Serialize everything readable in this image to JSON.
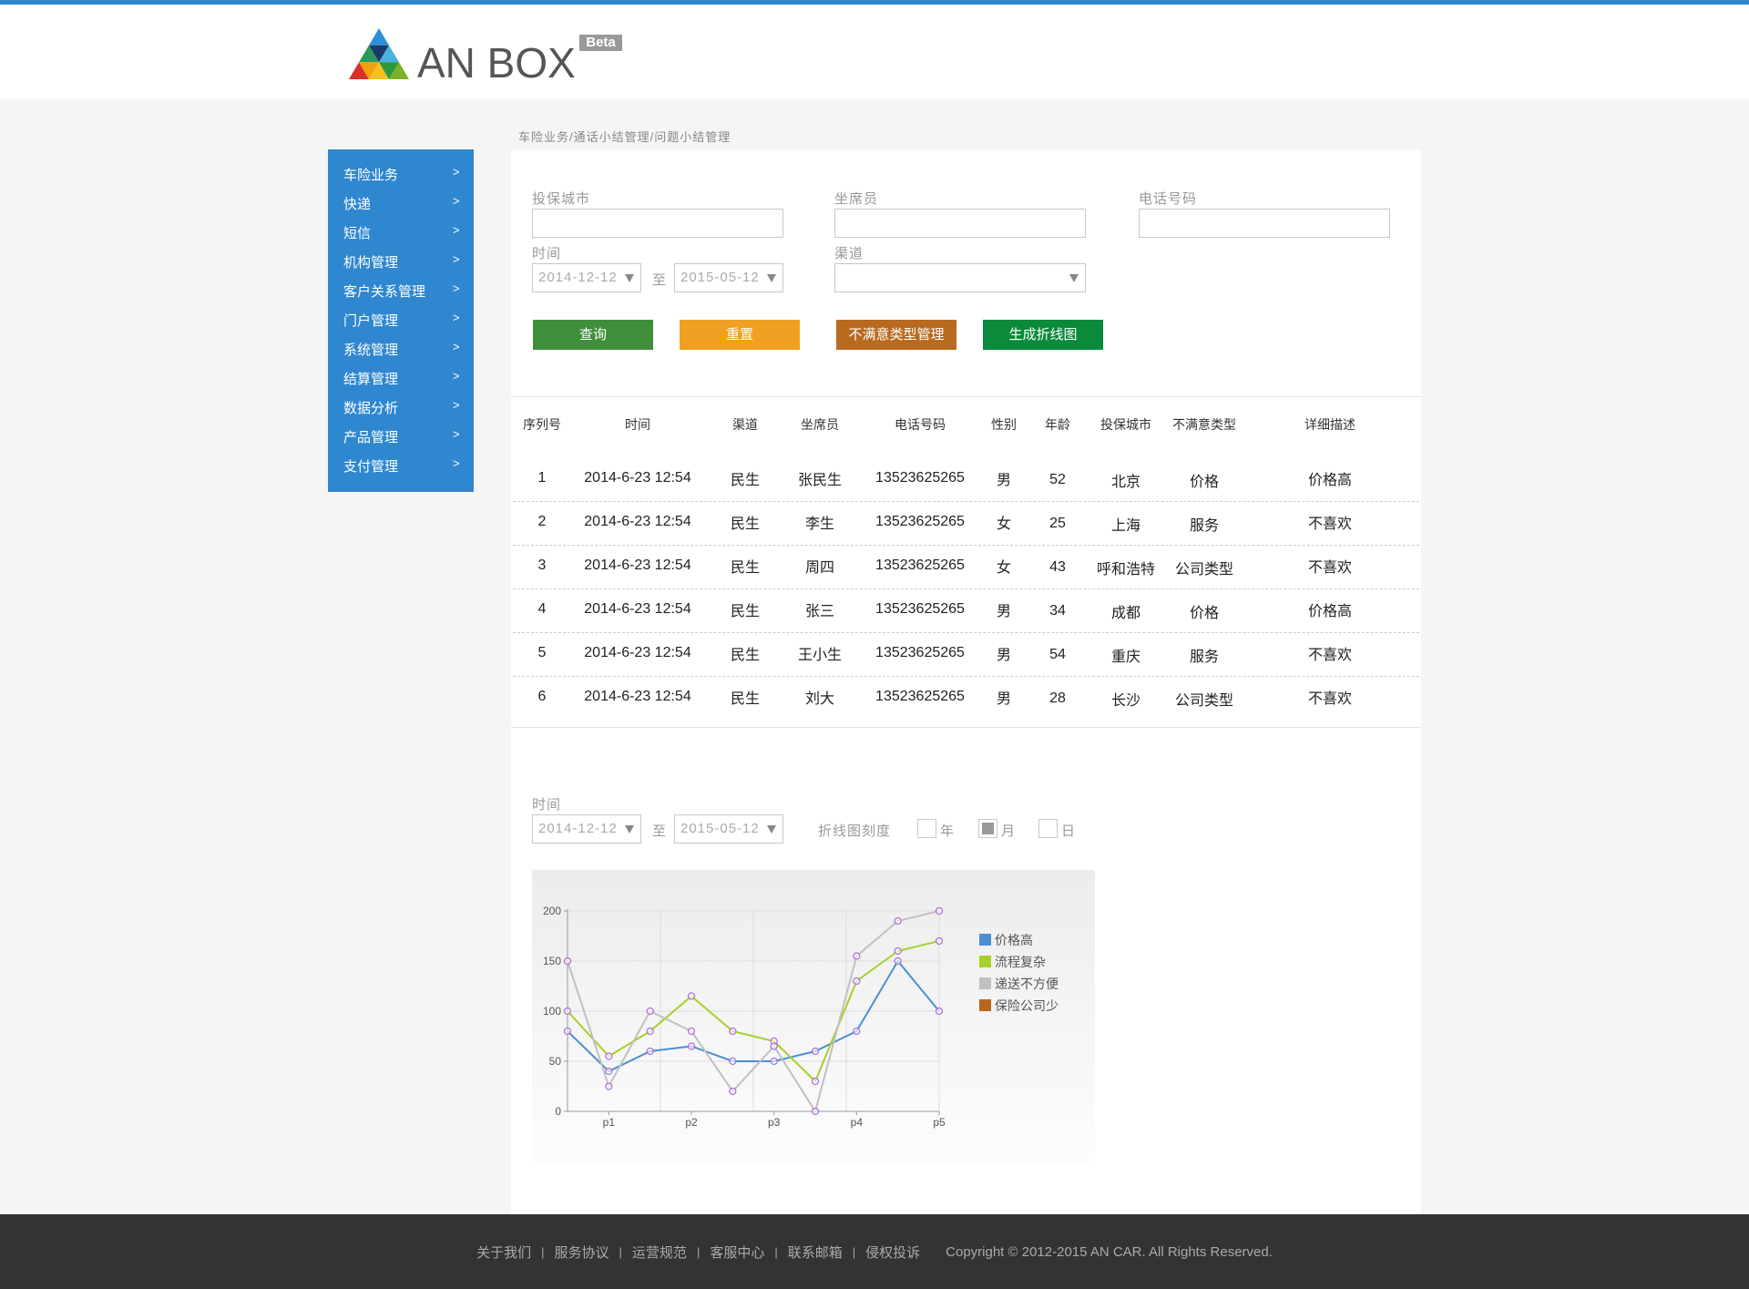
{
  "header": {
    "logo": "AN BOX",
    "badge": "Beta"
  },
  "breadcrumb": "车险业务/通话小结管理/问题小结管理",
  "sidebar": {
    "items": [
      "车险业务",
      "快递",
      "短信",
      "机构管理",
      "客户关系管理",
      "门户管理",
      "系统管理",
      "结算管理",
      "数据分析",
      "产品管理",
      "支付管理"
    ],
    "arrow": ">"
  },
  "form": {
    "city_label": "投保城市",
    "agent_label": "坐席员",
    "phone_label": "电话号码",
    "time_label": "时间",
    "date_from": "2014-12-12",
    "to": "至",
    "date_to": "2015-05-12",
    "channel_label": "渠道"
  },
  "buttons": [
    "查询",
    "重置",
    "不满意类型管理",
    "生成折线图"
  ],
  "table": {
    "headers": [
      "序列号",
      "时间",
      "渠道",
      "坐席员",
      "电话号码",
      "性别",
      "年龄",
      "投保城市",
      "不满意类型",
      "详细描述"
    ],
    "rows": [
      [
        "1",
        "2014-6-23 12:54",
        "民生",
        "张民生",
        "13523625265",
        "男",
        "52",
        "北京",
        "价格",
        "价格高"
      ],
      [
        "2",
        "2014-6-23 12:54",
        "民生",
        "李生",
        "13523625265",
        "女",
        "25",
        "上海",
        "服务",
        "不喜欢"
      ],
      [
        "3",
        "2014-6-23 12:54",
        "民生",
        "周四",
        "13523625265",
        "女",
        "43",
        "呼和浩特",
        "公司类型",
        "不喜欢"
      ],
      [
        "4",
        "2014-6-23 12:54",
        "民生",
        "张三",
        "13523625265",
        "男",
        "34",
        "成都",
        "价格",
        "价格高"
      ],
      [
        "5",
        "2014-6-23 12:54",
        "民生",
        "王小生",
        "13523625265",
        "男",
        "54",
        "重庆",
        "服务",
        "不喜欢"
      ],
      [
        "6",
        "2014-6-23 12:54",
        "民生",
        "刘大",
        "13523625265",
        "男",
        "28",
        "长沙",
        "公司类型",
        "不喜欢"
      ]
    ]
  },
  "chart_controls": {
    "time_label": "时间",
    "date_from": "2014-12-12",
    "to": "至",
    "date_to": "2015-05-12",
    "scale_label": "折线图刻度",
    "options": [
      "年",
      "月",
      "日"
    ],
    "selected": "月"
  },
  "chart_data": {
    "type": "line",
    "categories": [
      null,
      "p1",
      null,
      "p2",
      null,
      "p3",
      null,
      "p4",
      null,
      "p5"
    ],
    "series": [
      {
        "name": "价格高",
        "color": "#4a90d0",
        "values": [
          80,
          40,
          60,
          65,
          50,
          50,
          60,
          80,
          150,
          100
        ]
      },
      {
        "name": "流程复杂",
        "color": "#a6d02a",
        "values": [
          100,
          55,
          80,
          115,
          80,
          70,
          30,
          130,
          160,
          170
        ]
      },
      {
        "name": "递送不方便",
        "color": "#c0c0c0",
        "values": [
          150,
          25,
          100,
          80,
          20,
          65,
          0,
          155,
          190,
          200
        ]
      },
      {
        "name": "保险公司少",
        "color": "#b8651e",
        "values": [
          null,
          null,
          null,
          null,
          null,
          null,
          null,
          null,
          null,
          null
        ]
      }
    ],
    "marker_color": "#b070e0",
    "ylim": [
      0,
      200
    ],
    "yticks": [
      0,
      50,
      100,
      150,
      200
    ],
    "grid": true,
    "legend": "right"
  },
  "footer": {
    "links": [
      "关于我们",
      "服务协议",
      "运营规范",
      "客服中心",
      "联系邮箱",
      "侵权投诉"
    ],
    "separator": "|",
    "copyright": "Copyright © 2012-2015 AN CAR.  All Rights Reserved."
  }
}
